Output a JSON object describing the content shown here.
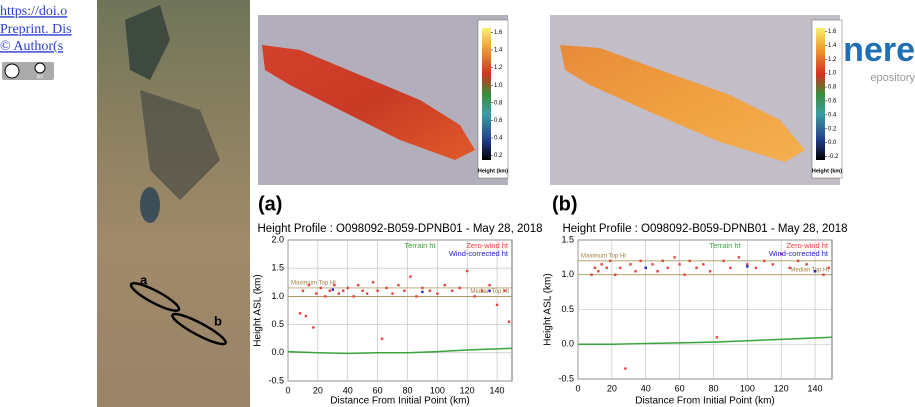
{
  "header": {
    "lines": [
      "https://doi.o",
      "Preprint. Dis",
      "© Author(s"
    ],
    "badge": "BY",
    "logo": [
      "nere",
      "epository"
    ]
  },
  "map": {
    "labels": [
      "a",
      "b"
    ]
  },
  "panels": [
    "(a)",
    "(b)"
  ],
  "colorbars": [
    {
      "label": "Height (km)",
      "range": [
        0.15,
        1.65
      ],
      "ticks": [
        0.2,
        0.4,
        0.6,
        0.8,
        {
          "value": 1,
          "label": "1.0"
        },
        1.2,
        1.4,
        1.6
      ]
    },
    {
      "label": "Height (km)",
      "range": [
        -0.25,
        1.65
      ],
      "ticks": [
        -0.2,
        {
          "value": 0,
          "label": "0.0"
        },
        0.2,
        0.4,
        0.6,
        0.8,
        {
          "value": 1,
          "label": "1.0"
        },
        1.2,
        1.4,
        1.6
      ]
    }
  ],
  "chart_data": [
    {
      "type": "scatter",
      "title": "Height Profile : O098092-B059-DPNB01 - May 28, 2018",
      "x_label": "Distance From Initial Point (km)",
      "y_label": "Height ASL (km)",
      "xlim": [
        0,
        150
      ],
      "xticks": [
        0,
        20,
        40,
        60,
        80,
        100,
        120,
        140
      ],
      "ylim": [
        -0.5,
        2.0
      ],
      "yticks": [
        {
          "value": -0.5,
          "label": "-0.5"
        },
        {
          "value": 0,
          "label": "0.0"
        },
        {
          "value": 0.5,
          "label": "0.5"
        },
        {
          "value": 1,
          "label": "1.0"
        },
        {
          "value": 1.5,
          "label": "1.5"
        },
        {
          "value": 2,
          "label": "2.0"
        }
      ],
      "grid": true,
      "ref_lines": [
        {
          "label": "Maximum Top Ht",
          "value": 1.15,
          "color": "#a08040"
        },
        {
          "label": "Median Top Ht",
          "value": 1.0,
          "color": "#a08040"
        }
      ],
      "series": [
        {
          "name": "Terrain ht",
          "color": "#3aa43a",
          "x": [
            0,
            20,
            40,
            60,
            80,
            100,
            120,
            150
          ],
          "values": [
            0.02,
            0.0,
            -0.01,
            0.0,
            0.0,
            0.02,
            0.05,
            0.08
          ]
        },
        {
          "name": "Zero-wind ht",
          "color": "#e8413a",
          "x": [
            8,
            10,
            12,
            14,
            17,
            19,
            22,
            25,
            28,
            31,
            34,
            37,
            40,
            44,
            47,
            50,
            53,
            57,
            60,
            63,
            66,
            70,
            74,
            78,
            82,
            86,
            90,
            95,
            100,
            105,
            110,
            115,
            120,
            125,
            130,
            135,
            140,
            145,
            148
          ],
          "values": [
            0.7,
            1.1,
            0.65,
            1.2,
            0.45,
            1.05,
            1.15,
            1.0,
            1.1,
            1.2,
            1.05,
            1.1,
            1.15,
            1.0,
            1.2,
            1.1,
            1.05,
            1.25,
            1.1,
            0.25,
            1.15,
            1.05,
            1.2,
            1.1,
            1.35,
            1.0,
            1.15,
            1.1,
            1.05,
            1.2,
            1.1,
            1.15,
            1.45,
            1.0,
            1.1,
            1.2,
            0.85,
            1.1,
            0.55
          ]
        },
        {
          "name": "Wind-corrected ht",
          "color": "#2222cc",
          "x": [
            30,
            90,
            135
          ],
          "values": [
            1.12,
            1.08,
            1.1
          ]
        }
      ]
    },
    {
      "type": "scatter",
      "title": "Height Profile : O098092-B059-DPNB01 - May 28, 2018",
      "x_label": "Distance From Initial Point (km)",
      "y_label": "Height ASL (km)",
      "xlim": [
        0,
        150
      ],
      "xticks": [
        0,
        20,
        40,
        60,
        80,
        100,
        120,
        140
      ],
      "ylim": [
        -0.5,
        1.5
      ],
      "yticks": [
        {
          "value": -0.5,
          "label": "-0.5"
        },
        {
          "value": 0,
          "label": "0.0"
        },
        {
          "value": 0.5,
          "label": "0.5"
        },
        {
          "value": 1,
          "label": "1.0"
        },
        {
          "value": 1.5,
          "label": "1.5"
        }
      ],
      "grid": true,
      "ref_lines": [
        {
          "label": "Maximum Top Ht",
          "value": 1.2,
          "color": "#a08040"
        },
        {
          "label": "Median Top Ht",
          "value": 1.0,
          "color": "#a08040"
        }
      ],
      "series": [
        {
          "name": "Terrain ht",
          "color": "#3aa43a",
          "x": [
            0,
            20,
            40,
            60,
            80,
            100,
            120,
            150
          ],
          "values": [
            0.0,
            0.0,
            0.01,
            0.02,
            0.03,
            0.05,
            0.07,
            0.1
          ]
        },
        {
          "name": "Zero-wind ht",
          "color": "#e8413a",
          "x": [
            8,
            10,
            12,
            14,
            17,
            19,
            22,
            25,
            28,
            31,
            34,
            37,
            40,
            44,
            47,
            50,
            53,
            57,
            60,
            63,
            66,
            70,
            74,
            78,
            82,
            86,
            90,
            95,
            100,
            105,
            110,
            115,
            120,
            125,
            130,
            135,
            140,
            145,
            148
          ],
          "values": [
            1.0,
            1.1,
            1.05,
            1.15,
            1.1,
            1.2,
            1.0,
            1.1,
            -0.35,
            1.15,
            1.05,
            1.2,
            1.1,
            1.15,
            1.05,
            1.2,
            1.1,
            1.25,
            1.15,
            1.0,
            1.2,
            1.1,
            1.15,
            1.05,
            0.1,
            1.2,
            1.1,
            1.25,
            1.15,
            1.1,
            1.2,
            1.15,
            1.3,
            1.1,
            1.2,
            1.15,
            1.05,
            1.0,
            1.1
          ]
        },
        {
          "name": "Wind-corrected ht",
          "color": "#2222cc",
          "x": [
            40,
            100,
            140
          ],
          "values": [
            1.1,
            1.12,
            1.05
          ]
        }
      ]
    }
  ]
}
